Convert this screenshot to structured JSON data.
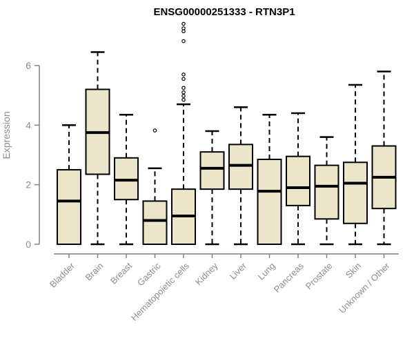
{
  "figure": {
    "title": "ENSG00000251333 - RTN3P1"
  },
  "chart_data": {
    "type": "boxplot",
    "title": "ENSG00000251333 - RTN3P1",
    "xlabel": "",
    "ylabel": "Expression",
    "ylim": [
      0,
      6
    ],
    "yticks": [
      0,
      2,
      4,
      6
    ],
    "grid": false,
    "legend": false,
    "categories": [
      "Bladder",
      "Brain",
      "Breast",
      "Gastric",
      "Hematopoietic cells",
      "Kidney",
      "Liver",
      "Lung",
      "Pancreas",
      "Prostate",
      "Skin",
      "Unknown / Other"
    ],
    "series": [
      {
        "name": "Bladder",
        "whisker_low": 0,
        "q1": 0.0,
        "median": 1.45,
        "q3": 2.5,
        "whisker_high": 4.0,
        "outliers": []
      },
      {
        "name": "Brain",
        "whisker_low": 0,
        "q1": 2.35,
        "median": 3.75,
        "q3": 5.2,
        "whisker_high": 6.45,
        "outliers": []
      },
      {
        "name": "Breast",
        "whisker_low": 0,
        "q1": 1.5,
        "median": 2.15,
        "q3": 2.9,
        "whisker_high": 4.35,
        "outliers": []
      },
      {
        "name": "Gastric",
        "whisker_low": 0,
        "q1": 0.0,
        "median": 0.8,
        "q3": 1.45,
        "whisker_high": 2.55,
        "outliers": [
          3.82
        ]
      },
      {
        "name": "Hematopoietic cells",
        "whisker_low": 0,
        "q1": 0.0,
        "median": 0.95,
        "q3": 1.85,
        "whisker_high": 4.7,
        "outliers": [
          7.4,
          7.25,
          7.15,
          6.82,
          5.7,
          5.55,
          5.25,
          5.1,
          4.98,
          4.85
        ]
      },
      {
        "name": "Kidney",
        "whisker_low": 0,
        "q1": 1.85,
        "median": 2.55,
        "q3": 3.1,
        "whisker_high": 3.8,
        "outliers": []
      },
      {
        "name": "Liver",
        "whisker_low": 0,
        "q1": 1.85,
        "median": 2.65,
        "q3": 3.35,
        "whisker_high": 4.6,
        "outliers": []
      },
      {
        "name": "Lung",
        "whisker_low": 0,
        "q1": 0.0,
        "median": 1.78,
        "q3": 2.85,
        "whisker_high": 4.35,
        "outliers": []
      },
      {
        "name": "Pancreas",
        "whisker_low": 0,
        "q1": 1.3,
        "median": 1.9,
        "q3": 2.95,
        "whisker_high": 4.4,
        "outliers": []
      },
      {
        "name": "Prostate",
        "whisker_low": 0,
        "q1": 0.85,
        "median": 1.95,
        "q3": 2.65,
        "whisker_high": 3.6,
        "outliers": []
      },
      {
        "name": "Skin",
        "whisker_low": 0,
        "q1": 0.7,
        "median": 2.05,
        "q3": 2.75,
        "whisker_high": 5.35,
        "outliers": []
      },
      {
        "name": "Unknown / Other",
        "whisker_low": 0,
        "q1": 1.2,
        "median": 2.25,
        "q3": 3.3,
        "whisker_high": 5.8,
        "outliers": []
      }
    ]
  },
  "style": {
    "background": "#FFFFFF",
    "box_fill": "#EBE5C9",
    "box_stroke": "#000000",
    "median_color": "#000000",
    "whisker_color": "#000000",
    "outlier_color": "#000000",
    "axis_color": "#808080",
    "tick_label_color": "#8C8C8C",
    "title_color": "#000000"
  }
}
